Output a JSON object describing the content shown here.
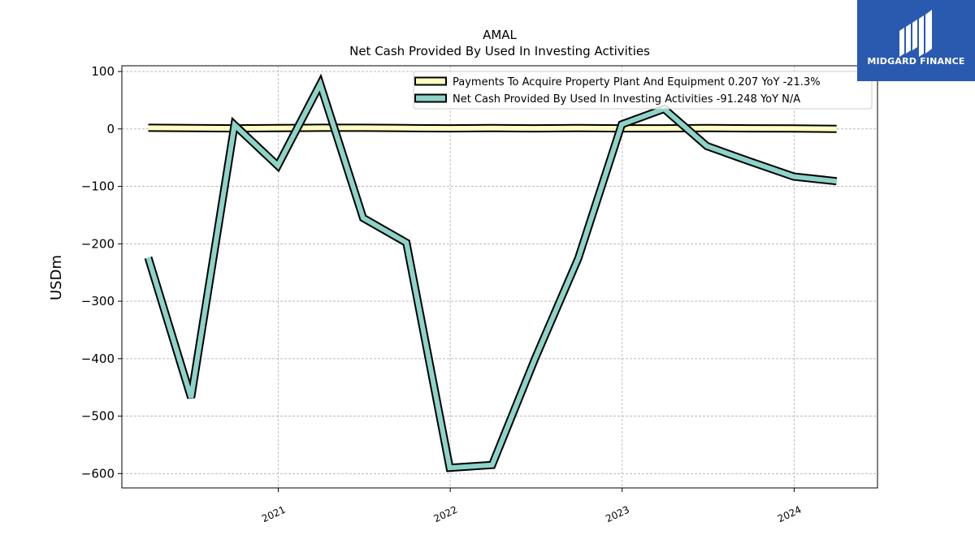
{
  "chart_data": {
    "type": "line",
    "title": "AMAL",
    "subtitle": "Net Cash Provided By Used In Investing Activities",
    "xlabel": "",
    "ylabel": "USDm",
    "ylim": [
      -625,
      110
    ],
    "xlim": [
      "2020-02-04",
      "2024-06-26"
    ],
    "yticks": [
      100,
      0,
      -100,
      -200,
      -300,
      -400,
      -500,
      -600
    ],
    "ytick_labels": [
      "100",
      "0",
      "−100",
      "−200",
      "−300",
      "−400",
      "−500",
      "−600"
    ],
    "xticks": [
      "2021-01-01",
      "2022-01-01",
      "2023-01-01",
      "2024-01-01"
    ],
    "xtick_labels": [
      "2021",
      "2022",
      "2023",
      "2024"
    ],
    "grid": true,
    "legend_position": "top-right",
    "series": [
      {
        "name": "Payments To Acquire Property Plant And Equipment  0.207 YoY -21.3%",
        "color": "#ffffc0",
        "x": [
          "2020-03-31",
          "2020-06-30",
          "2020-09-30",
          "2020-12-31",
          "2021-03-31",
          "2021-06-30",
          "2021-09-30",
          "2021-12-31",
          "2022-03-31",
          "2022-06-30",
          "2022-09-30",
          "2022-12-31",
          "2023-03-31",
          "2023-06-30",
          "2023-09-30",
          "2023-12-31",
          "2024-03-31"
        ],
        "values": [
          2,
          1.5,
          1,
          1.5,
          2,
          2,
          1.5,
          1,
          1.5,
          1,
          1.5,
          1,
          1,
          1.5,
          1,
          0.8,
          0.2
        ]
      },
      {
        "name": "Net Cash Provided By Used In Investing Activities  -91.248 YoY N/A",
        "color": "#8dd3c7",
        "x": [
          "2020-03-31",
          "2020-06-30",
          "2020-09-30",
          "2020-12-31",
          "2021-03-31",
          "2021-06-30",
          "2021-09-30",
          "2021-12-31",
          "2022-03-31",
          "2022-06-30",
          "2022-09-30",
          "2022-12-31",
          "2023-03-31",
          "2023-06-30",
          "2023-09-30",
          "2023-12-31",
          "2024-03-31"
        ],
        "values": [
          -224,
          -468,
          7,
          -64,
          78,
          -155,
          -198,
          -590,
          -585,
          -400,
          -225,
          8,
          35,
          -30,
          -57,
          -83,
          -91
        ]
      }
    ]
  },
  "logo": {
    "text": "MIDGARD FINANCE",
    "color": "#2a5ab0"
  }
}
